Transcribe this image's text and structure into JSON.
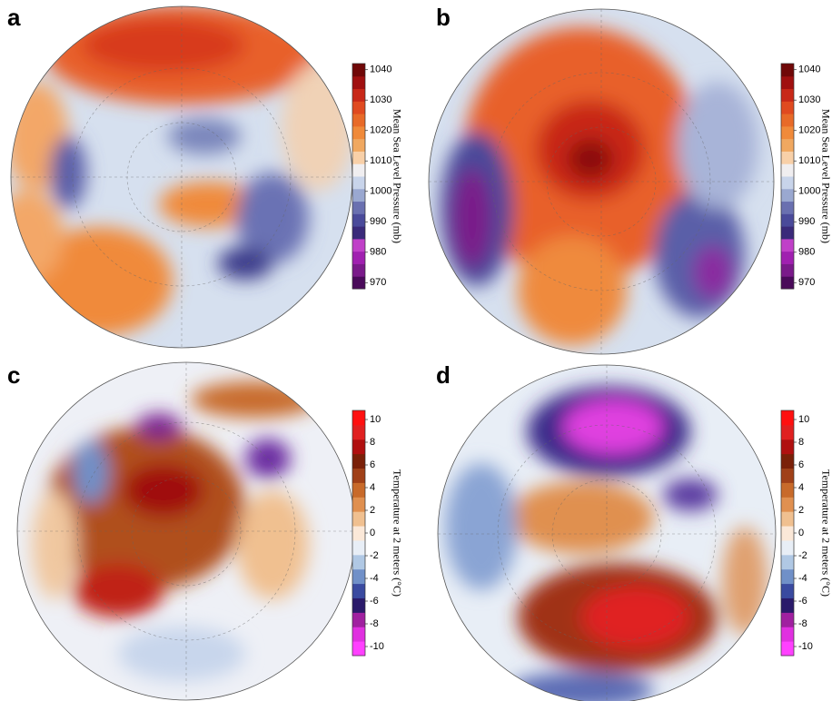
{
  "panels": [
    {
      "letter": "a",
      "colorbar": {
        "label": "Mean Sea Level Pressure (mb)",
        "lim": [
          968,
          1042
        ],
        "ticks": [
          970,
          980,
          990,
          1000,
          1010,
          1020,
          1030,
          1040
        ],
        "colors": [
          "#4a0a5a",
          "#7a1a8a",
          "#a020b0",
          "#c040c8",
          "#3a2a7a",
          "#4a4a9a",
          "#6a70b0",
          "#9aa8d0",
          "#c8d4ea",
          "#f0eef0",
          "#f8d0a8",
          "#f0a860",
          "#f08a3a",
          "#e86a28",
          "#e04a20",
          "#c82818",
          "#a01010",
          "#700808"
        ]
      }
    },
    {
      "letter": "b",
      "colorbar": {
        "label": "Mean Sea Level Pressure (mb)",
        "lim": [
          968,
          1042
        ],
        "ticks": [
          970,
          980,
          990,
          1000,
          1010,
          1020,
          1030,
          1040
        ],
        "colors": [
          "#4a0a5a",
          "#7a1a8a",
          "#a020b0",
          "#c040c8",
          "#3a2a7a",
          "#4a4a9a",
          "#6a70b0",
          "#9aa8d0",
          "#c8d4ea",
          "#f0eef0",
          "#f8d0a8",
          "#f0a860",
          "#f08a3a",
          "#e86a28",
          "#e04a20",
          "#c82818",
          "#a01010",
          "#700808"
        ]
      }
    },
    {
      "letter": "c",
      "colorbar": {
        "label": "Temperature at 2 meters (°C)",
        "lim": [
          -10.8,
          10.8
        ],
        "ticks": [
          -10,
          -8,
          -6,
          -4,
          -2,
          0,
          2,
          4,
          6,
          8,
          10
        ],
        "colors": [
          "#ff40ff",
          "#e030e0",
          "#a020a0",
          "#2a1a6a",
          "#3a4aa0",
          "#7090c8",
          "#b0c8e4",
          "#e8eef6",
          "#fbe8d8",
          "#f0c090",
          "#e09050",
          "#c86a2a",
          "#a04018",
          "#7a2008",
          "#b01010",
          "#e02020",
          "#ff1010"
        ]
      }
    },
    {
      "letter": "d",
      "colorbar": {
        "label": "Temperature at 2 meters (°C)",
        "lim": [
          -10.8,
          10.8
        ],
        "ticks": [
          -10,
          -8,
          -6,
          -4,
          -2,
          0,
          2,
          4,
          6,
          8,
          10
        ],
        "colors": [
          "#ff40ff",
          "#e030e0",
          "#a020a0",
          "#2a1a6a",
          "#3a4aa0",
          "#7090c8",
          "#b0c8e4",
          "#e8eef6",
          "#fbe8d8",
          "#f0c090",
          "#e09050",
          "#c86a2a",
          "#a04018",
          "#7a2008",
          "#b01010",
          "#e02020",
          "#ff1010"
        ]
      }
    }
  ]
}
